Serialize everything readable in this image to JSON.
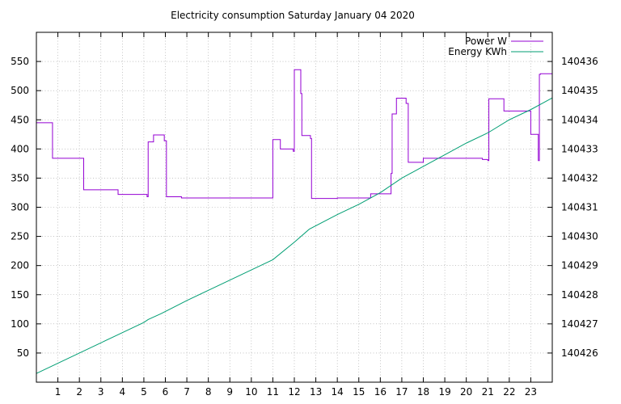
{
  "chart_data": {
    "type": "line",
    "title": "Electricity consumption Saturday January 04 2020",
    "xlim": [
      0,
      24
    ],
    "ylim": [
      0,
      600
    ],
    "y2lim": [
      140425,
      140437
    ],
    "x_ticks": [
      "1",
      "2",
      "3",
      "4",
      "5",
      "6",
      "7",
      "8",
      "9",
      "10",
      "11",
      "12",
      "13",
      "14",
      "15",
      "16",
      "17",
      "18",
      "19",
      "20",
      "21",
      "22",
      "23"
    ],
    "y_ticks": [
      "50",
      "100",
      "150",
      "200",
      "250",
      "300",
      "350",
      "400",
      "450",
      "500",
      "550"
    ],
    "y2_ticks": [
      "140426",
      "140427",
      "140428",
      "140429",
      "140430",
      "140431",
      "140432",
      "140433",
      "140434",
      "140435",
      "140436"
    ],
    "grid": true,
    "legend_position": "top-right",
    "series": [
      {
        "name": "Power W",
        "axis": "left",
        "color": "#9400d3",
        "step": true,
        "x": [
          0,
          0.75,
          2.2,
          3.8,
          5.15,
          5.2,
          5.45,
          5.95,
          6.05,
          6.75,
          11.0,
          11.35,
          11.95,
          12.0,
          12.3,
          12.35,
          12.75,
          12.8,
          14.0,
          15.55,
          16.5,
          16.55,
          16.7,
          16.75,
          17.2,
          17.3,
          18.0,
          20.7,
          20.75,
          21.0,
          21.05,
          21.7,
          21.75,
          22.95,
          23.0,
          23.35,
          23.4,
          23.45,
          24.0
        ],
        "y": [
          445,
          384,
          330,
          322,
          318,
          412,
          424,
          414,
          318,
          316,
          416,
          400,
          396,
          536,
          495,
          423,
          418,
          315,
          316,
          323,
          358,
          460,
          460,
          487,
          478,
          377,
          384,
          384,
          382,
          380,
          486,
          486,
          465,
          465,
          425,
          380,
          528,
          529,
          529
        ]
      },
      {
        "name": "Energy KWh",
        "axis": "right",
        "color": "#009e73",
        "step": false,
        "x": [
          0,
          1,
          2,
          3,
          4,
          5,
          5.2,
          5.8,
          7,
          8,
          9,
          10,
          11,
          12,
          12.7,
          14,
          15,
          16,
          17,
          18,
          19,
          20,
          21,
          22,
          23,
          24
        ],
        "y": [
          140425.3,
          140425.65,
          140426.0,
          140426.35,
          140426.7,
          140427.05,
          140427.15,
          140427.35,
          140427.8,
          140428.15,
          140428.5,
          140428.85,
          140429.2,
          140429.8,
          140430.25,
          140430.75,
          140431.1,
          140431.5,
          140432.0,
          140432.4,
          140432.8,
          140433.2,
          140433.55,
          140434.0,
          140434.35,
          140434.75
        ]
      }
    ]
  }
}
